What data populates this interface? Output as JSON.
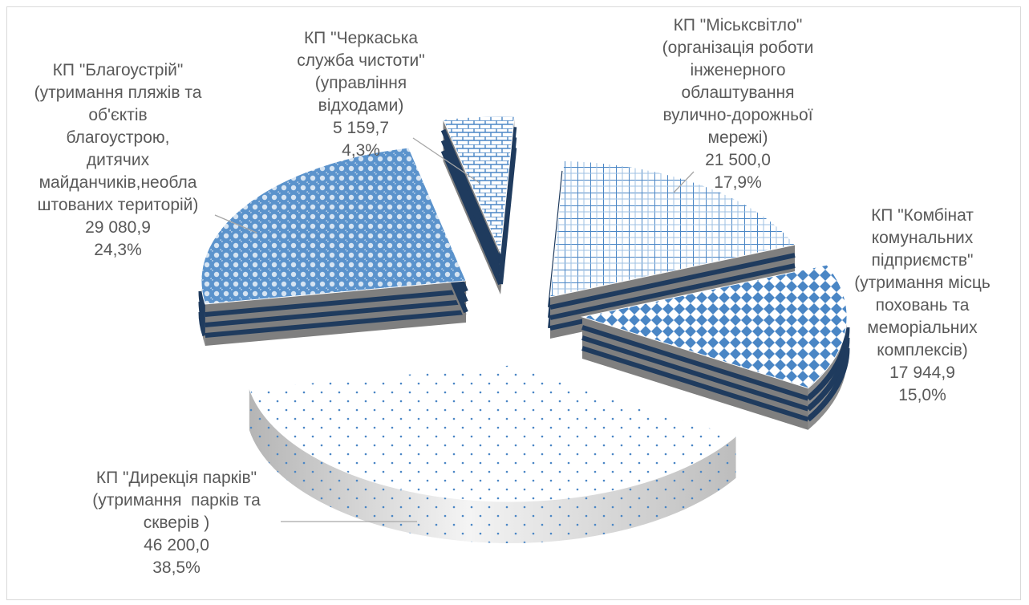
{
  "chart_data": {
    "type": "pie",
    "style": "3d-exploded",
    "title": "",
    "legend": "none",
    "colors": {
      "pattern": "#4a86c5",
      "side_stripe": "#1f3b5e",
      "side_gray": "#8c8c8c",
      "leader": "#a6a6a6",
      "text": "#595959"
    },
    "slices": [
      {
        "name": "КП \"Міськсвітло\"",
        "label_lines": [
          "КП \"Міськсвітло\"",
          "(організація роботи",
          "інженерного",
          "облаштування",
          "вулично-дорожньої",
          "мережі)"
        ],
        "value": 21500.0,
        "value_text": "21 500,0",
        "percent": 17.9,
        "percent_text": "17,9%",
        "pattern": "grid"
      },
      {
        "name": "КП \"Комбінат комунальних підприємств\"",
        "label_lines": [
          "КП \"Комбінат",
          "комунальних",
          "підприємств\"",
          "(утримання місць",
          "поховань та",
          "меморіальних",
          "комплексів)"
        ],
        "value": 17944.9,
        "value_text": "17 944,9",
        "percent": 15.0,
        "percent_text": "15,0%",
        "pattern": "diamonds"
      },
      {
        "name": "КП \"Дирекція парків\"",
        "label_lines": [
          "КП \"Дирекція парків\"",
          "(утримання  парків та",
          "скверів )"
        ],
        "value": 46200.0,
        "value_text": "46 200,0",
        "percent": 38.5,
        "percent_text": "38,5%",
        "pattern": "dots"
      },
      {
        "name": "КП \"Благоустрій\"",
        "label_lines": [
          "КП \"Благоустрій\"",
          "(утримання пляжів та",
          "об'єктів",
          "благоустрою,",
          "дитячих",
          "майданчиків,необла",
          "штованих територій)"
        ],
        "value": 29080.9,
        "value_text": "29 080,9",
        "percent": 24.3,
        "percent_text": "24,3%",
        "pattern": "hex"
      },
      {
        "name": "КП \"Черкаська служба чистоти\"",
        "label_lines": [
          "КП \"Черкаська",
          "служба чистоти\"",
          "(управління",
          "відходами)"
        ],
        "value": 5159.7,
        "value_text": "5 159,7",
        "percent": 4.3,
        "percent_text": "4,3%",
        "pattern": "bricks"
      }
    ]
  }
}
